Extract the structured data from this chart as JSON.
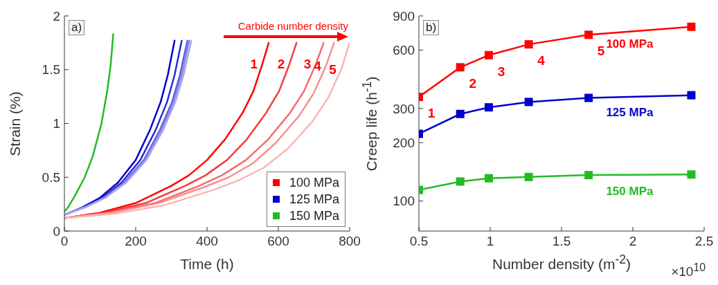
{
  "chart_data": [
    {
      "type": "line",
      "xlabel": "Time (h)",
      "ylabel": "Strain (%)",
      "xlim": [
        0,
        800
      ],
      "xticks": [
        0,
        200,
        400,
        600,
        800
      ],
      "ylim": [
        0,
        2
      ],
      "yticks": [
        0,
        0.5,
        1,
        1.5,
        2
      ],
      "legend": "bottom right",
      "annotations": [
        "a)",
        "Carbide number density",
        {
          "text": "1",
          "x": 555,
          "y": 1.55
        },
        {
          "text": "2",
          "x": 631,
          "y": 1.55
        },
        {
          "text": "3",
          "x": 705,
          "y": 1.55
        },
        {
          "text": "4",
          "x": 733,
          "y": 1.53
        },
        {
          "text": "5",
          "x": 776,
          "y": 1.5
        }
      ],
      "series": [
        {
          "name": "100 MPa",
          "color": "#ff0000",
          "x": [
            0,
            100,
            200,
            300,
            350,
            400,
            450,
            500,
            530,
            555,
            573
          ],
          "values": [
            0.12,
            0.17,
            0.26,
            0.42,
            0.52,
            0.66,
            0.85,
            1.1,
            1.3,
            1.55,
            1.75
          ]
        },
        {
          "color": "#f53b3b",
          "x": [
            0,
            114,
            228,
            339,
            397,
            456,
            511,
            566,
            602,
            631,
            651
          ],
          "values": [
            0.12,
            0.17,
            0.26,
            0.42,
            0.52,
            0.66,
            0.85,
            1.1,
            1.3,
            1.55,
            1.75
          ]
        },
        {
          "color": "#f56a6a",
          "x": [
            0,
            127,
            254,
            378,
            443,
            509,
            571,
            633,
            672,
            705,
            727
          ],
          "values": [
            0.12,
            0.17,
            0.26,
            0.42,
            0.52,
            0.66,
            0.85,
            1.1,
            1.3,
            1.55,
            1.75
          ]
        },
        {
          "color": "#f88f8f",
          "x": [
            0,
            132,
            265,
            393,
            461,
            529,
            593,
            658,
            699,
            733,
            756
          ],
          "values": [
            0.12,
            0.17,
            0.26,
            0.41,
            0.5,
            0.63,
            0.82,
            1.07,
            1.28,
            1.53,
            1.75
          ]
        },
        {
          "color": "#fbb5b5",
          "x": [
            0,
            140,
            280,
            416,
            488,
            560,
            628,
            696,
            740,
            776,
            800
          ],
          "values": [
            0.12,
            0.16,
            0.24,
            0.38,
            0.47,
            0.59,
            0.77,
            1.02,
            1.24,
            1.5,
            1.75
          ]
        },
        {
          "name": "125 MPa",
          "color": "#0000cc",
          "x": [
            0,
            50,
            100,
            150,
            200,
            240,
            270,
            290,
            309
          ],
          "values": [
            0.15,
            0.22,
            0.31,
            0.45,
            0.66,
            0.94,
            1.2,
            1.45,
            1.77
          ]
        },
        {
          "color": "#2a2ad6",
          "x": [
            0,
            53,
            107,
            160,
            213,
            256,
            288,
            309,
            329
          ],
          "values": [
            0.15,
            0.22,
            0.31,
            0.45,
            0.66,
            0.94,
            1.2,
            1.45,
            1.77
          ]
        },
        {
          "color": "#5c5ce0",
          "x": [
            0,
            56,
            112,
            167,
            223,
            268,
            302,
            324,
            345
          ],
          "values": [
            0.15,
            0.22,
            0.31,
            0.45,
            0.66,
            0.94,
            1.2,
            1.45,
            1.77
          ]
        },
        {
          "color": "#8585e8",
          "x": [
            0,
            57,
            113,
            170,
            226,
            272,
            306,
            329,
            350
          ],
          "values": [
            0.15,
            0.22,
            0.31,
            0.45,
            0.66,
            0.94,
            1.2,
            1.45,
            1.77
          ]
        },
        {
          "color": "#a8a8ef",
          "x": [
            0,
            58,
            115,
            173,
            230,
            277,
            311,
            334,
            356
          ],
          "values": [
            0.15,
            0.22,
            0.31,
            0.45,
            0.66,
            0.94,
            1.2,
            1.45,
            1.77
          ]
        },
        {
          "name": "150 MPa",
          "color": "#22bb22",
          "x": [
            0,
            10,
            30,
            57,
            80,
            104,
            120,
            130,
            137
          ],
          "values": [
            0.18,
            0.22,
            0.33,
            0.5,
            0.7,
            1.0,
            1.3,
            1.55,
            1.83
          ]
        }
      ]
    },
    {
      "type": "line",
      "xlabel": "Number density (m$^{-2}$)",
      "ylabel": "Creep life (h$^{-1}$)",
      "xlim": [
        0.5,
        2.5
      ],
      "xticks": [
        0.5,
        1,
        1.5,
        2,
        2.5
      ],
      "ylim": [
        70,
        900
      ],
      "yticks": [
        100,
        200,
        300,
        600,
        900
      ],
      "log": "y",
      "marker": "square",
      "annotations": [
        "b)",
        "×10$^{10}$",
        {
          "text": "1",
          "x": 0.5,
          "y": 344
        },
        {
          "text": "2",
          "x": 0.79,
          "y": 489
        },
        {
          "text": "3",
          "x": 0.99,
          "y": 565
        },
        {
          "text": "4",
          "x": 1.27,
          "y": 642
        },
        {
          "text": "5",
          "x": 1.69,
          "y": 719
        }
      ],
      "x": [
        0.5,
        0.79,
        0.99,
        1.27,
        1.69,
        2.41
      ],
      "series": [
        {
          "name": "100 MPa",
          "color": "#ff0000",
          "values": [
            344,
            489,
            565,
            642,
            719,
            791
          ]
        },
        {
          "name": "125 MPa",
          "color": "#0000cc",
          "values": [
            222,
            281,
            304,
            324,
            340,
            351
          ]
        },
        {
          "name": "150 MPa",
          "color": "#22bb22",
          "values": [
            114,
            126,
            131,
            133,
            136,
            137
          ]
        }
      ]
    }
  ]
}
